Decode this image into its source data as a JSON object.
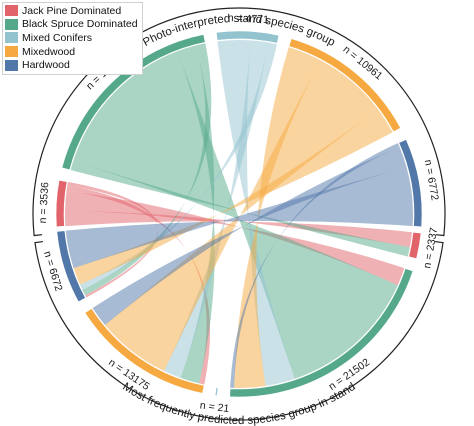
{
  "legend": [
    {
      "label": "Jack Pine Dominated",
      "color": "#e2646b"
    },
    {
      "label": "Black Spruce Dominated",
      "color": "#55a98a"
    },
    {
      "label": "Mixed Conifers",
      "color": "#93c3cf"
    },
    {
      "label": "Mixedwood",
      "color": "#f5a940"
    },
    {
      "label": "Hardwood",
      "color": "#5278a9"
    }
  ],
  "top_title": "Photo-interpreted stand species group",
  "bottom_title": "Most frequently predicted species group in stand",
  "top_groups": [
    {
      "group": "Jack Pine Dominated",
      "label": "n = 3536",
      "n": 3536
    },
    {
      "group": "Black Spruce Dominated",
      "label": "n = 15519",
      "n": 15519
    },
    {
      "group": "Mixed Conifers",
      "label": "n = 4771",
      "n": 4771
    },
    {
      "group": "Mixedwood",
      "label": "n = 10961",
      "n": 10961
    },
    {
      "group": "Hardwood",
      "label": "n = 6772",
      "n": 6772
    }
  ],
  "bottom_groups": [
    {
      "group": "Jack Pine Dominated",
      "label": "n = 2337",
      "n": 2337
    },
    {
      "group": "Black Spruce Dominated",
      "label": "n = 21502",
      "n": 21502
    },
    {
      "group": "Mixed Conifers",
      "label": "n = 21",
      "n": 21
    },
    {
      "group": "Mixedwood",
      "label": "n = 13175",
      "n": 13175
    },
    {
      "group": "Hardwood",
      "label": "n = 6672",
      "n": 6672
    }
  ]
}
